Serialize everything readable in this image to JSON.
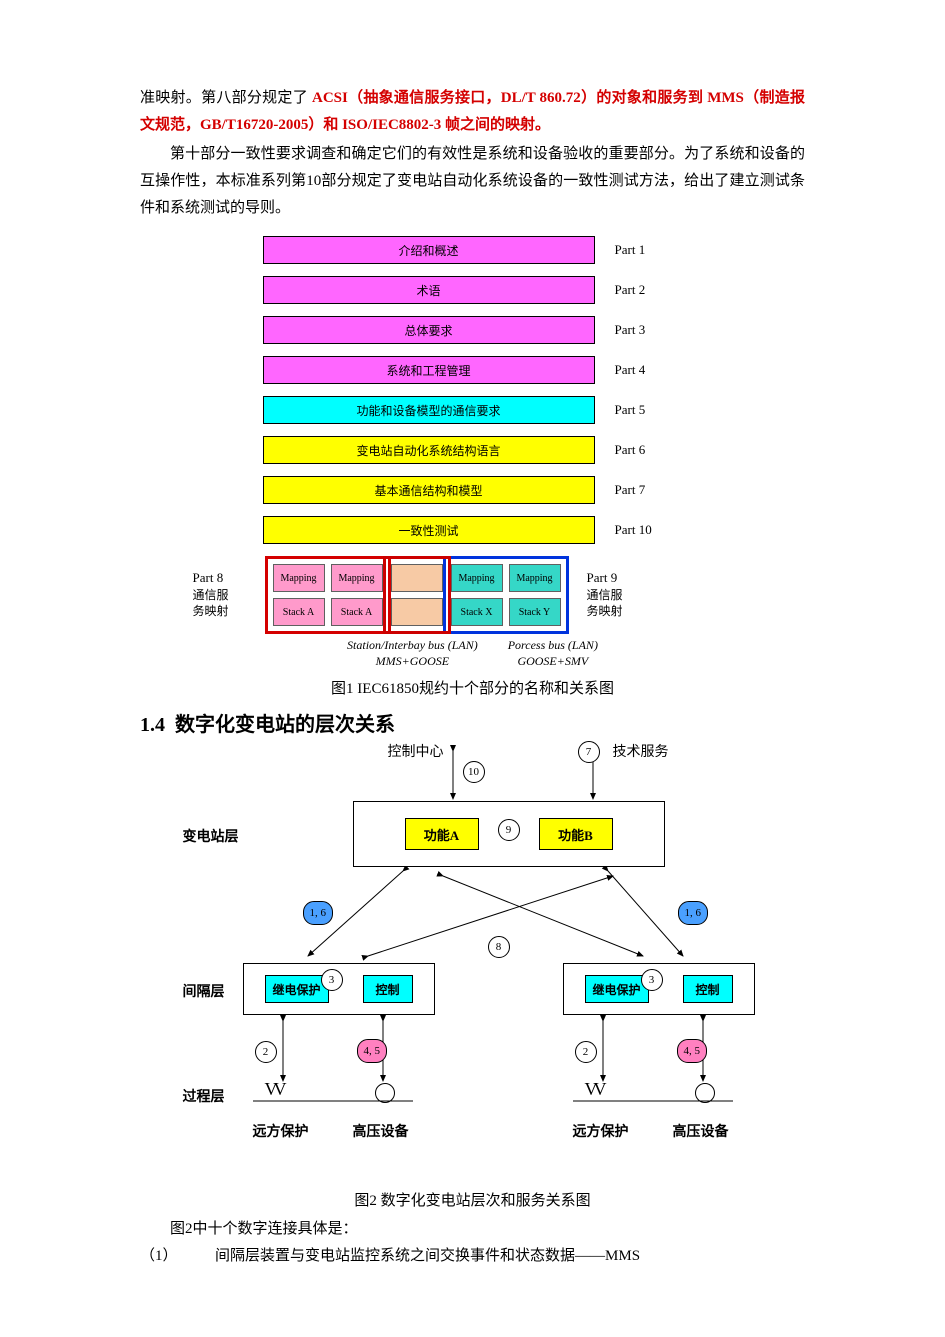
{
  "para1_a": "准映射。第八部分规定了 ",
  "para1_b": "ACSI（抽象通信服务接口，DL/T 860.72）的对象和服务到 MMS（制造报文规范，GB/T16720-2005）和 ISO/IEC8802-3 帧之间的映射。",
  "para2": "第十部分一致性要求调查和确定它们的有效性是系统和设备验收的重要部分。为了系统和设备的互操作性，本标准系列第10部分规定了变电站自动化系统设备的一致性测试方法，给出了建立测试条件和系统测试的导则。",
  "fig1": {
    "bars": [
      {
        "text": "介绍和概述",
        "label": "Part 1",
        "bg": "#ff66ff"
      },
      {
        "text": "术语",
        "label": "Part 2",
        "bg": "#ff66ff"
      },
      {
        "text": "总体要求",
        "label": "Part 3",
        "bg": "#ff66ff"
      },
      {
        "text": "系统和工程管理",
        "label": "Part 4",
        "bg": "#ff66ff"
      },
      {
        "text": "功能和设备模型的通信要求",
        "label": "Part 5",
        "bg": "#00ffff"
      },
      {
        "text": "变电站自动化系统结构语言",
        "label": "Part 6",
        "bg": "#ffff00"
      },
      {
        "text": "基本通信结构和模型",
        "label": "Part 7",
        "bg": "#ffff00"
      },
      {
        "text": "一致性测试",
        "label": "Part 10",
        "bg": "#ffff00"
      }
    ],
    "left": {
      "part": "Part 8",
      "sub": "通信服\n务映射",
      "border": "#d40000",
      "cells": [
        [
          "Mapping",
          "Mapping"
        ],
        [
          "Stack A",
          "Stack A"
        ]
      ],
      "bg": "#ff9acb"
    },
    "mid": {
      "border": "#cc0000",
      "cells": [
        [
          "",
          ""
        ],
        [
          "",
          ""
        ]
      ],
      "bg": "#f7caa5"
    },
    "right": {
      "part": "Part 9",
      "sub": "通信服\n务映射",
      "border": "#0033dd",
      "cells": [
        [
          "Mapping",
          "Mapping"
        ],
        [
          "Stack X",
          "Stack Y"
        ]
      ],
      "bg": "#35d7c7"
    },
    "bus_left_a": "Station/Interbay bus (LAN)",
    "bus_left_b": "MMS+GOOSE",
    "bus_right_a": "Porcess bus (LAN)",
    "bus_right_b": "GOOSE+SMV",
    "caption_a": "图",
    "caption_n": "1",
    "caption_b": " IEC61850",
    "caption_c": "规约十个部分的名称和关系图"
  },
  "heading": {
    "num": "1.4",
    "text": "数字化变电站的层次关系"
  },
  "fig2": {
    "top_ctrl": "控制中心",
    "top_tech": "技术服务",
    "layer1": "变电站层",
    "layer2": "间隔层",
    "layer3": "过程层",
    "funcA": "功能A",
    "funcB": "功能B",
    "prot": "继电保护",
    "ctrl": "控制",
    "remote": "远方保护",
    "hv": "高压设备",
    "circ": {
      "c2": "2",
      "c3": "3",
      "c7": "7",
      "c8": "8",
      "c9": "9",
      "c10": "10"
    },
    "pill16": "1, 6",
    "pill45": "4, 5",
    "caption_a": "图",
    "caption_n": "2",
    "caption_b": " 数字化变电站层次和服务关系图"
  },
  "after": {
    "line1_a": "图",
    "line1_n": "2",
    "line1_b": "中十个数字连接具体是：",
    "item_num": "（1）",
    "item_gap": "　　　",
    "item_txt": "间隔层装置与变电站监控系统之间交换事件和状态数据——",
    "item_tail": "MMS"
  }
}
